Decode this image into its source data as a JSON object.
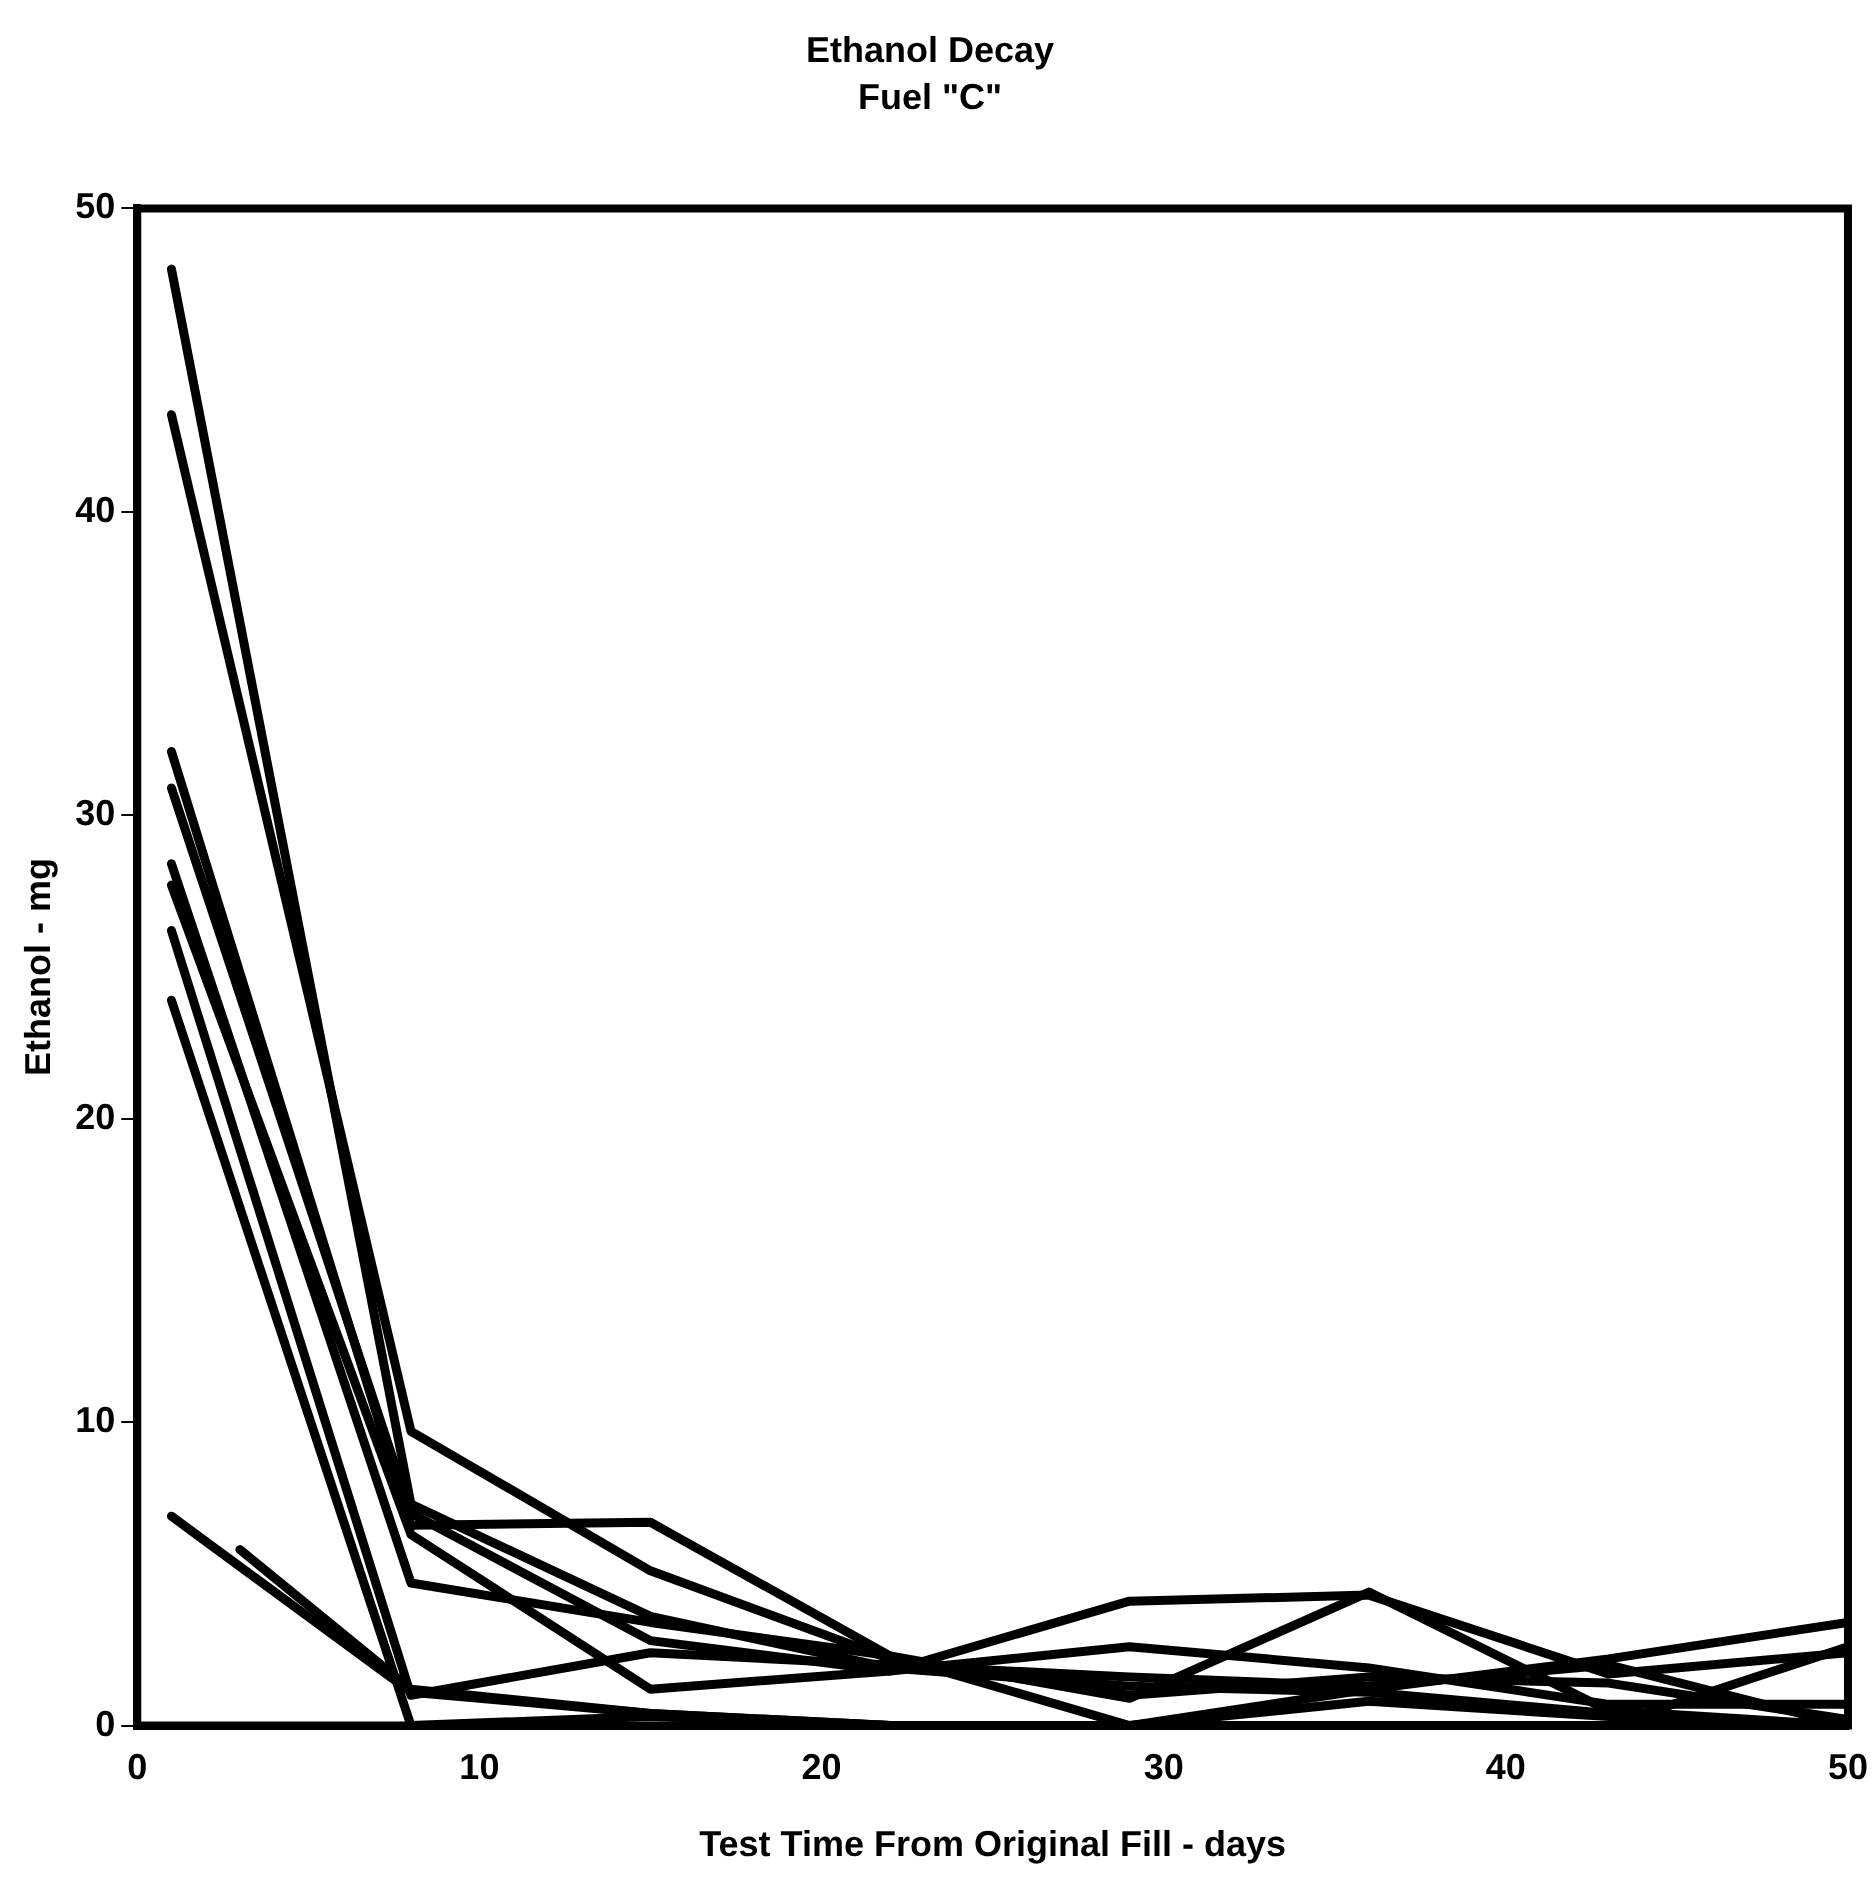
{
  "chart_data": {
    "type": "line",
    "title": "Ethanol Decay",
    "subtitle": "Fuel \"C\"",
    "xlabel": "Test Time From Original Fill - days",
    "ylabel": "Ethanol - mg",
    "x": [
      1,
      8,
      15,
      22,
      29,
      36,
      43,
      50
    ],
    "series": [
      {
        "color": "#000000",
        "values": [
          48,
          7.3,
          3.6,
          1.9,
          1.3,
          1.1,
          0.4,
          0
        ]
      },
      {
        "color": "#000000",
        "values": [
          43.2,
          9.7,
          5.1,
          2.2,
          1.0,
          1.6,
          1.4,
          0.2
        ]
      },
      {
        "color": "#000000",
        "values": [
          32.1,
          6.6,
          6.7,
          2.3,
          0,
          1.2,
          2.2,
          3.4
        ]
      },
      {
        "color": "#000000",
        "values": [
          30.9,
          7.0,
          2.8,
          1.8,
          2.6,
          1.9,
          0.7,
          0.7
        ]
      },
      {
        "color": "#000000",
        "values": [
          28.4,
          4.7,
          3.4,
          2.3,
          0.9,
          4.4,
          0.5,
          0
        ]
      },
      {
        "color": "#000000",
        "values": [
          27.7,
          6.3,
          1.2,
          1.8,
          4.1,
          4.3,
          1.7,
          2.4
        ]
      },
      {
        "color": "#000000",
        "values": [
          26.2,
          1.0,
          2.4,
          2.0,
          1.6,
          1.3,
          2.0,
          0
        ]
      },
      {
        "color": "#000000",
        "values": [
          23.9,
          0,
          0.3,
          0,
          0,
          0,
          0,
          2.6
        ]
      },
      {
        "color": "#000000",
        "values": [
          6.9,
          1.1,
          0.4,
          0,
          0,
          0,
          0,
          0
        ]
      },
      {
        "color": "#000000",
        "x": [
          3,
          8,
          15,
          22,
          29,
          36,
          43,
          50
        ],
        "values": [
          5.8,
          1.2,
          0.4,
          0,
          0,
          0.8,
          0.3,
          0
        ]
      }
    ],
    "xlim": [
      0,
      50
    ],
    "xticks": [
      0,
      10,
      20,
      30,
      40,
      50
    ],
    "ylim": [
      0,
      50
    ],
    "yticks": [
      0,
      10,
      20,
      30,
      40,
      50
    ],
    "grid": false,
    "legend": false,
    "marker": "none",
    "line_style": "solid"
  }
}
